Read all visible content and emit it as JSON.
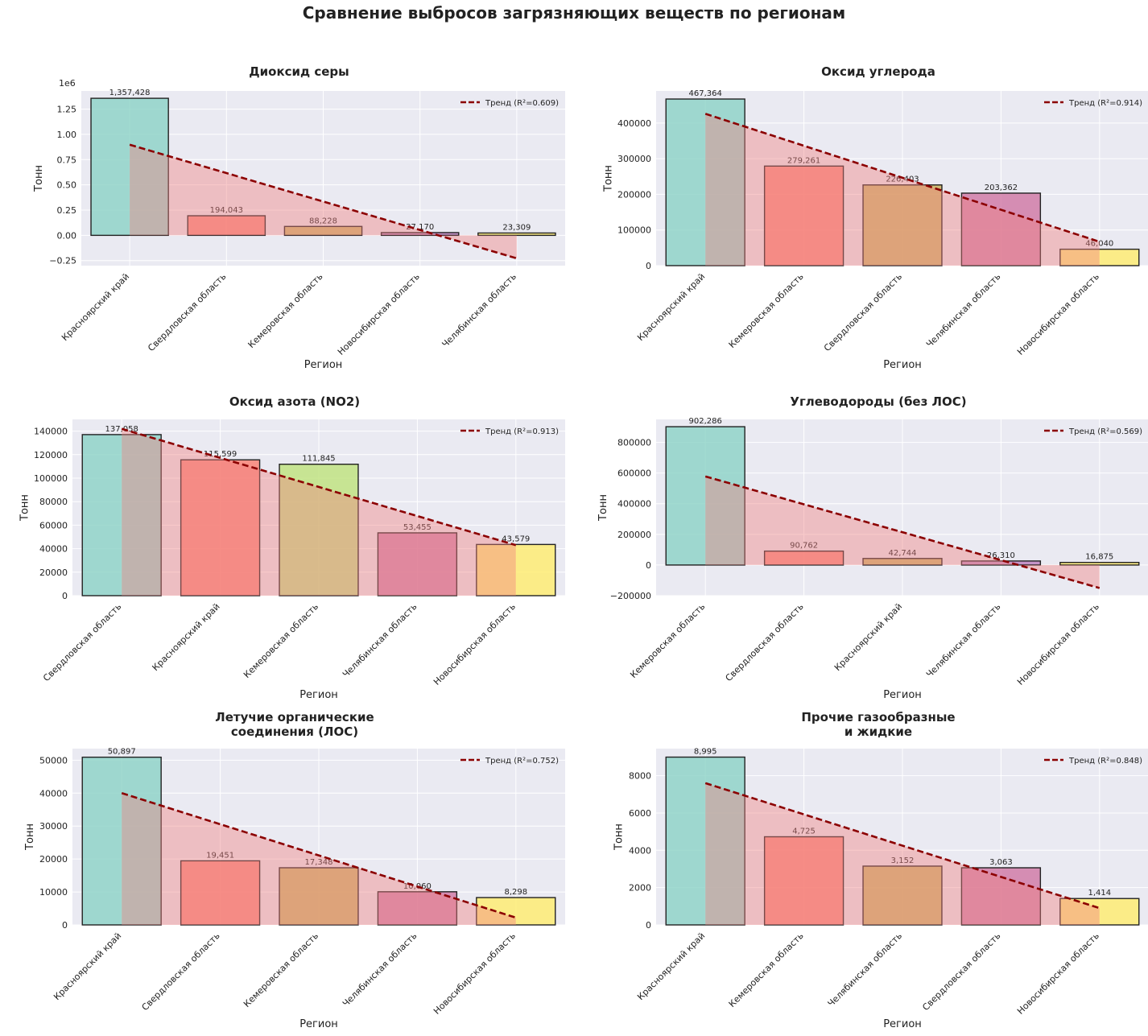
{
  "title": "Сравнение выбросов загрязняющих веществ по регионам",
  "colors": {
    "palette": [
      "#8dd3c7",
      "#fb8072",
      "#bebada",
      "#bc80bd",
      "#fdb462",
      "#ffed6f"
    ],
    "trend_line": "#8b0000",
    "trend_fill": "#f08080",
    "plot_bg": "#eaeaf2"
  },
  "chart_data": [
    {
      "type": "bar",
      "title": "Диоксид серы",
      "xlabel": "Регион",
      "ylabel": "Тонн",
      "offset_label": "1e6",
      "categories": [
        "Красноярский край",
        "Свердловская область",
        "Кемеровская область",
        "Новосибирская область",
        "Челябинская область"
      ],
      "values": [
        1357428,
        194043,
        88228,
        27170,
        23309
      ],
      "value_labels": [
        "1,357,428",
        "194,043",
        "88,228",
        "27,170",
        "23,309"
      ],
      "bar_colors": [
        "#8dd3c7",
        "#fb8072",
        "#c9b25a",
        "#bc80bd",
        "#ffed6f"
      ],
      "ylim": [
        -300000,
        1430000
      ],
      "yticks": [
        -250000,
        0,
        250000,
        500000,
        750000,
        1000000,
        1250000
      ],
      "ytick_labels": [
        "−0.25",
        "0.00",
        "0.25",
        "0.50",
        "0.75",
        "1.00",
        "1.25"
      ],
      "trend": {
        "label": "Тренд (R²=0.609)",
        "start": 898000,
        "end": -228000
      },
      "legend": "top-right"
    },
    {
      "type": "bar",
      "title": "Оксид углерода",
      "xlabel": "Регион",
      "ylabel": "Тонн",
      "categories": [
        "Красноярский край",
        "Кемеровская область",
        "Свердловская область",
        "Челябинская область",
        "Новосибирская область"
      ],
      "values": [
        467364,
        279261,
        226403,
        203362,
        46040
      ],
      "value_labels": [
        "467,364",
        "279,261",
        "226,403",
        "203,362",
        "46,040"
      ],
      "bar_colors": [
        "#8dd3c7",
        "#fb8072",
        "#c9b25a",
        "#d179a5",
        "#ffed6f"
      ],
      "ylim": [
        0,
        490000
      ],
      "yticks": [
        0,
        100000,
        200000,
        300000,
        400000
      ],
      "ytick_labels": [
        "0",
        "100000",
        "200000",
        "300000",
        "400000"
      ],
      "trend": {
        "label": "Тренд (R²=0.914)",
        "start": 426000,
        "end": 67000
      },
      "legend": "top-right"
    },
    {
      "type": "bar",
      "title": "Оксид азота (NO2)",
      "xlabel": "Регион",
      "ylabel": "Тонн",
      "categories": [
        "Свердловская область",
        "Красноярский край",
        "Кемеровская область",
        "Челябинская область",
        "Новосибирская область"
      ],
      "values": [
        137058,
        115599,
        111845,
        53455,
        43579
      ],
      "value_labels": [
        "137,058",
        "115,599",
        "111,845",
        "53,455",
        "43,579"
      ],
      "bar_colors": [
        "#8dd3c7",
        "#fb8072",
        "#c0e37e",
        "#d179a5",
        "#ffed6f"
      ],
      "ylim": [
        0,
        150000
      ],
      "yticks": [
        0,
        20000,
        40000,
        60000,
        80000,
        100000,
        120000,
        140000
      ],
      "ytick_labels": [
        "0",
        "20000",
        "40000",
        "60000",
        "80000",
        "100000",
        "120000",
        "140000"
      ],
      "trend": {
        "label": "Тренд (R²=0.913)",
        "start": 142000,
        "end": 43000
      },
      "legend": "top-right"
    },
    {
      "type": "bar",
      "title": "Углеводороды (без ЛОС)",
      "xlabel": "Регион",
      "ylabel": "Тонн",
      "categories": [
        "Кемеровская область",
        "Свердловская область",
        "Красноярский край",
        "Челябинская область",
        "Новосибирская область"
      ],
      "values": [
        902286,
        90762,
        42744,
        26310,
        16875
      ],
      "value_labels": [
        "902,286",
        "90,762",
        "42,744",
        "26,310",
        "16,875"
      ],
      "bar_colors": [
        "#8dd3c7",
        "#fb8072",
        "#c9b25a",
        "#bc80bd",
        "#ffed6f"
      ],
      "ylim": [
        -200000,
        950000
      ],
      "yticks": [
        -200000,
        0,
        200000,
        400000,
        600000,
        800000
      ],
      "ytick_labels": [
        "−200000",
        "0",
        "200000",
        "400000",
        "600000",
        "800000"
      ],
      "trend": {
        "label": "Тренд (R²=0.569)",
        "start": 578000,
        "end": -150000
      },
      "legend": "top-right"
    },
    {
      "type": "bar",
      "title": "Летучие органические\nсоединения (ЛОС)",
      "xlabel": "Регион",
      "ylabel": "Тонн",
      "categories": [
        "Красноярский край",
        "Свердловская область",
        "Кемеровская область",
        "Челябинская область",
        "Новосибирская область"
      ],
      "values": [
        50897,
        19451,
        17348,
        10060,
        8298
      ],
      "value_labels": [
        "50,897",
        "19,451",
        "17,348",
        "10,060",
        "8,298"
      ],
      "bar_colors": [
        "#8dd3c7",
        "#fb8072",
        "#c9b25a",
        "#d179a5",
        "#ffed6f"
      ],
      "ylim": [
        0,
        53500
      ],
      "yticks": [
        0,
        10000,
        20000,
        30000,
        40000,
        50000
      ],
      "ytick_labels": [
        "0",
        "10000",
        "20000",
        "30000",
        "40000",
        "50000"
      ],
      "trend": {
        "label": "Тренд (R²=0.752)",
        "start": 40000,
        "end": 2200
      },
      "legend": "top-right"
    },
    {
      "type": "bar",
      "title": "Прочие газообразные\nи жидкие",
      "xlabel": "Регион",
      "ylabel": "Тонн",
      "categories": [
        "Красноярский край",
        "Кемеровская область",
        "Челябинская область",
        "Свердловская область",
        "Новосибирская область"
      ],
      "values": [
        8995,
        4725,
        3152,
        3063,
        1414
      ],
      "value_labels": [
        "8,995",
        "4,725",
        "3,152",
        "3,063",
        "1,414"
      ],
      "bar_colors": [
        "#8dd3c7",
        "#fb8072",
        "#c9b25a",
        "#d179a5",
        "#ffed6f"
      ],
      "ylim": [
        0,
        9450
      ],
      "yticks": [
        0,
        2000,
        4000,
        6000,
        8000
      ],
      "ytick_labels": [
        "0",
        "2000",
        "4000",
        "6000",
        "8000"
      ],
      "trend": {
        "label": "Тренд (R²=0.848)",
        "start": 7600,
        "end": 900
      },
      "legend": "top-right"
    }
  ]
}
